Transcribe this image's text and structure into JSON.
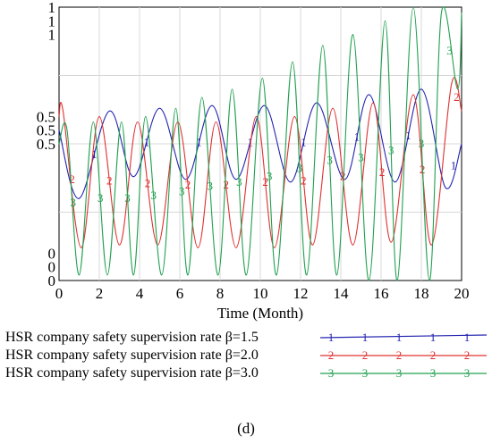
{
  "chart_data": {
    "type": "line",
    "xlabel": "Time (Month)",
    "x_ticks": [
      "0",
      "2",
      "4",
      "6",
      "8",
      "10",
      "12",
      "14",
      "16",
      "18",
      "20"
    ],
    "xlim": [
      0,
      20
    ],
    "ylim": [
      0,
      1
    ],
    "y_ticks": [
      {
        "value": 1.0,
        "label": "1"
      },
      {
        "value": 0.95,
        "label": "1"
      },
      {
        "value": 0.9,
        "label": "1"
      },
      {
        "value": 0.6,
        "label": "0.5"
      },
      {
        "value": 0.55,
        "label": "0.5"
      },
      {
        "value": 0.5,
        "label": "0.5"
      },
      {
        "value": 0.1,
        "label": "0"
      },
      {
        "value": 0.05,
        "label": "0"
      },
      {
        "value": 0.0,
        "label": "0"
      }
    ],
    "grid": true,
    "legend_position": "bottom",
    "series": [
      {
        "name": "HSR company safety supervision rate β=1.5",
        "marker": "1",
        "color": "#2323b0",
        "x": [
          0,
          1,
          2.5,
          3.7,
          5,
          6.3,
          7.6,
          8.8,
          10.2,
          11.5,
          12.8,
          14.2,
          15.4,
          16.7,
          18,
          19.2,
          20
        ],
        "y": [
          0.55,
          0.3,
          0.62,
          0.38,
          0.63,
          0.37,
          0.64,
          0.37,
          0.64,
          0.36,
          0.65,
          0.37,
          0.68,
          0.36,
          0.7,
          0.34,
          0.5
        ]
      },
      {
        "name": "HSR company safety supervision rate β=2.0",
        "marker": "2",
        "color": "#e03030",
        "x": [
          0,
          0.2,
          1.1,
          2,
          3,
          3.9,
          4.9,
          5.9,
          6.9,
          7.8,
          8.8,
          9.8,
          10.7,
          11.7,
          12.6,
          13.6,
          14.6,
          15.6,
          16.5,
          17.6,
          18.5,
          19.5,
          20
        ],
        "y": [
          0.6,
          0.62,
          0.12,
          0.6,
          0.13,
          0.58,
          0.13,
          0.58,
          0.12,
          0.58,
          0.12,
          0.6,
          0.12,
          0.6,
          0.13,
          0.63,
          0.13,
          0.65,
          0.14,
          0.68,
          0.13,
          0.72,
          0.62
        ]
      },
      {
        "name": "HSR company safety supervision rate β=3.0",
        "marker": "3",
        "color": "#20a050",
        "x": [
          0,
          0.4,
          1,
          1.7,
          2.4,
          3.1,
          3.7,
          4.3,
          5.1,
          5.8,
          6.4,
          7.1,
          7.9,
          8.6,
          9.3,
          10.1,
          10.8,
          11.6,
          12.3,
          13.1,
          13.8,
          14.6,
          15.4,
          16.2,
          16.8,
          17.6,
          18.4,
          19,
          19.8,
          20
        ],
        "y": [
          0.5,
          0.55,
          0.02,
          0.58,
          0.02,
          0.58,
          0.02,
          0.6,
          0.02,
          0.63,
          0.02,
          0.67,
          0.02,
          0.7,
          0.02,
          0.74,
          0.02,
          0.8,
          0.02,
          0.86,
          0.02,
          0.9,
          0.0,
          0.95,
          0.0,
          1.05,
          0.0,
          0.98,
          0.7,
          0.98
        ]
      }
    ]
  },
  "caption": "(d)"
}
